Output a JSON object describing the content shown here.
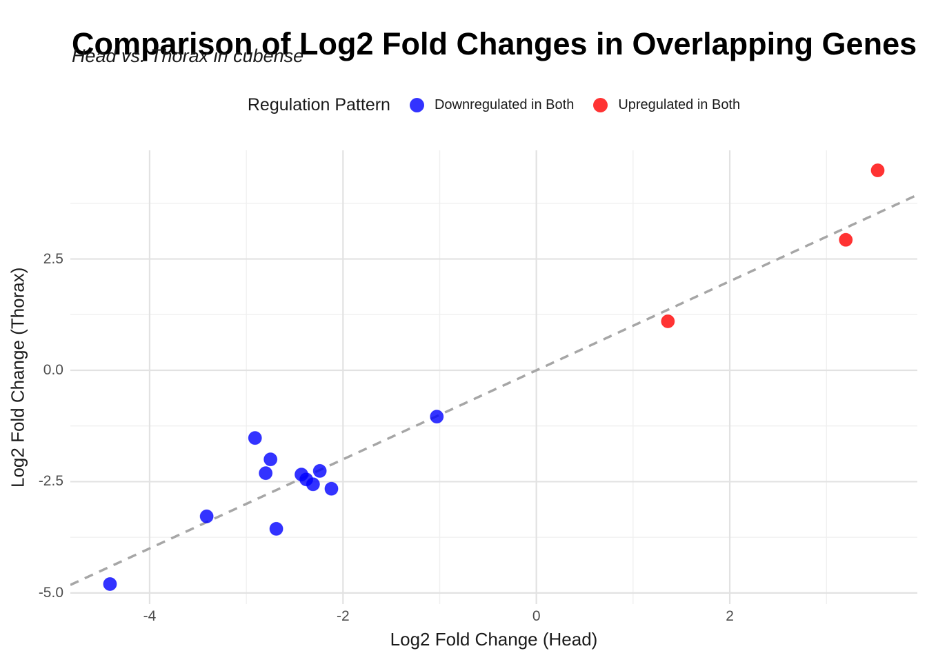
{
  "chart_data": {
    "type": "scatter",
    "title": "Comparison of Log2 Fold Changes in Overlapping Genes",
    "subtitle": "Head vs. Thorax in cubense",
    "xlabel": "Log2 Fold Change (Head)",
    "ylabel": "Log2 Fold Change (Thorax)",
    "legend_title": "Regulation Pattern",
    "legend_position": "top-center",
    "grid": true,
    "xlim": [
      -4.82,
      3.94
    ],
    "ylim": [
      -5.25,
      4.94
    ],
    "x_ticks": {
      "major": [
        {
          "v": -4,
          "label": "-4"
        },
        {
          "v": -2,
          "label": "-2"
        },
        {
          "v": 0,
          "label": "0"
        },
        {
          "v": 2,
          "label": "2"
        }
      ],
      "minor": [
        -3,
        -1,
        1,
        3
      ]
    },
    "y_ticks": {
      "major": [
        {
          "v": 2.5,
          "label": "2.5"
        },
        {
          "v": 0,
          "label": "0.0"
        },
        {
          "v": -2.5,
          "label": "-2.5"
        },
        {
          "v": -5,
          "label": "-5.0"
        }
      ],
      "minor": [
        3.75,
        1.25,
        -1.25,
        -3.75
      ]
    },
    "reference_line": {
      "slope": 1,
      "intercept": 0,
      "style": "dashed",
      "color": "#a6a6a6"
    },
    "grid_colors": {
      "major": "#e2e2e2",
      "minor": "#efefef"
    },
    "series": [
      {
        "name": "Downregulated in Both",
        "color": "#0000ff",
        "opacity": 0.8,
        "points": [
          [
            -4.41,
            -4.8
          ],
          [
            -3.41,
            -3.28
          ],
          [
            -2.91,
            -1.52
          ],
          [
            -2.8,
            -2.31
          ],
          [
            -2.75,
            -2.0
          ],
          [
            -2.69,
            -3.56
          ],
          [
            -2.43,
            -2.34
          ],
          [
            -2.38,
            -2.45
          ],
          [
            -2.31,
            -2.56
          ],
          [
            -2.24,
            -2.26
          ],
          [
            -2.12,
            -2.66
          ],
          [
            -1.03,
            -1.04
          ]
        ]
      },
      {
        "name": "Upregulated in Both",
        "color": "#ff0000",
        "opacity": 0.8,
        "points": [
          [
            1.36,
            1.1
          ],
          [
            3.2,
            2.93
          ],
          [
            3.53,
            4.49
          ]
        ]
      }
    ]
  }
}
